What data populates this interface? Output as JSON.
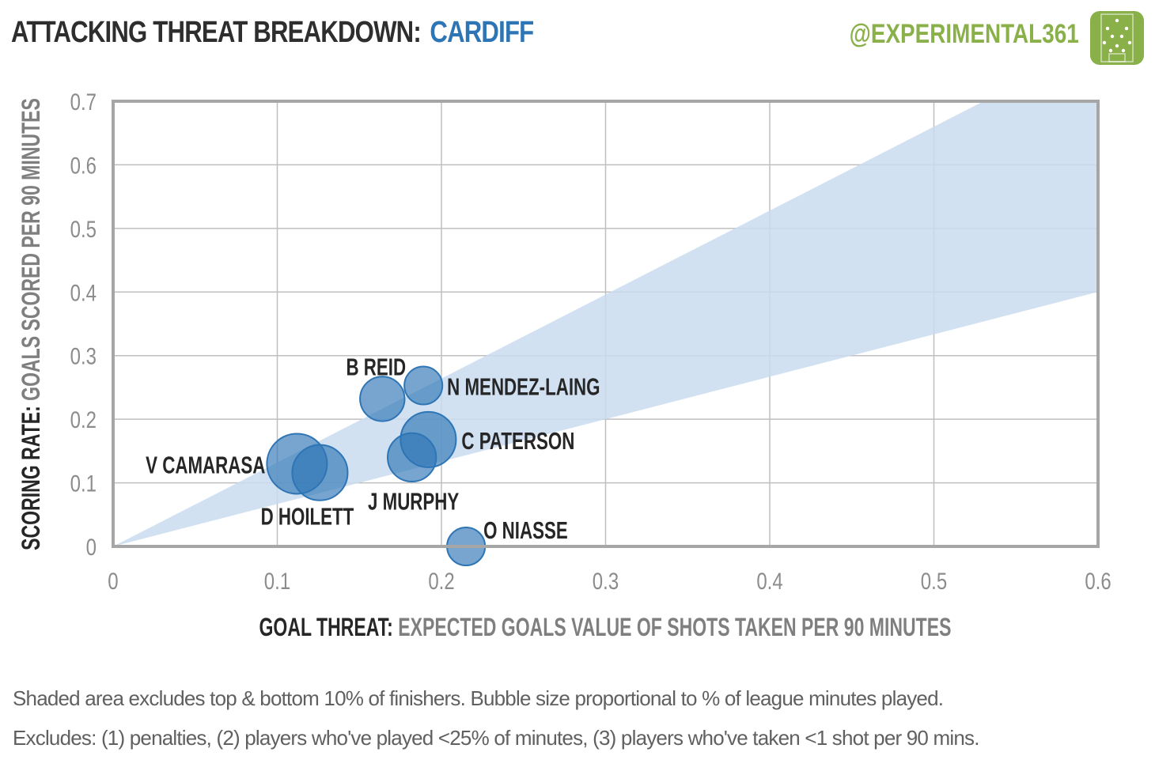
{
  "header": {
    "title_main": "ATTACKING THREAT BREAKDOWN:",
    "title_team": "CARDIFF",
    "handle": "@EXPERIMENTAL361"
  },
  "colors": {
    "bubble_fill": "#2e75b6",
    "band_fill": "#c9dcef",
    "team_text": "#2e75b6",
    "handle_text": "#8ab04a"
  },
  "chart_data": {
    "type": "scatter",
    "xlabel_bold": "GOAL THREAT:",
    "xlabel_rest": "EXPECTED GOALS VALUE OF SHOTS TAKEN PER 90 MINUTES",
    "ylabel_bold": "SCORING RATE:",
    "ylabel_rest": "GOALS SCORED PER 90 MINUTES",
    "xlim": [
      0,
      0.6
    ],
    "ylim": [
      0,
      0.7
    ],
    "x_ticks": [
      "0",
      "0.1",
      "0.2",
      "0.3",
      "0.4",
      "0.5",
      "0.6"
    ],
    "y_ticks": [
      "0",
      "0.1",
      "0.2",
      "0.3",
      "0.4",
      "0.5",
      "0.6",
      "0.7"
    ],
    "grid": true,
    "band": {
      "lower_slope": 0.667,
      "upper_slope": 1.32
    },
    "points": [
      {
        "name": "B REID",
        "x": 0.164,
        "y": 0.232,
        "size": 0.55
      },
      {
        "name": "N MENDEZ-LAING",
        "x": 0.189,
        "y": 0.253,
        "size": 0.4
      },
      {
        "name": "C PATERSON",
        "x": 0.192,
        "y": 0.168,
        "size": 0.85
      },
      {
        "name": "J MURPHY",
        "x": 0.182,
        "y": 0.14,
        "size": 0.65
      },
      {
        "name": "V CAMARASA",
        "x": 0.112,
        "y": 0.13,
        "size": 1.0
      },
      {
        "name": "D HOILETT",
        "x": 0.126,
        "y": 0.116,
        "size": 0.85
      },
      {
        "name": "O NIASSE",
        "x": 0.215,
        "y": 0.0,
        "size": 0.4
      }
    ]
  },
  "footnotes": [
    "Shaded area excludes top & bottom 10% of finishers. Bubble size proportional to % of league minutes played.",
    "Excludes: (1) penalties, (2) players who've played <25% of minutes, (3) players who've taken <1 shot per 90 mins."
  ]
}
